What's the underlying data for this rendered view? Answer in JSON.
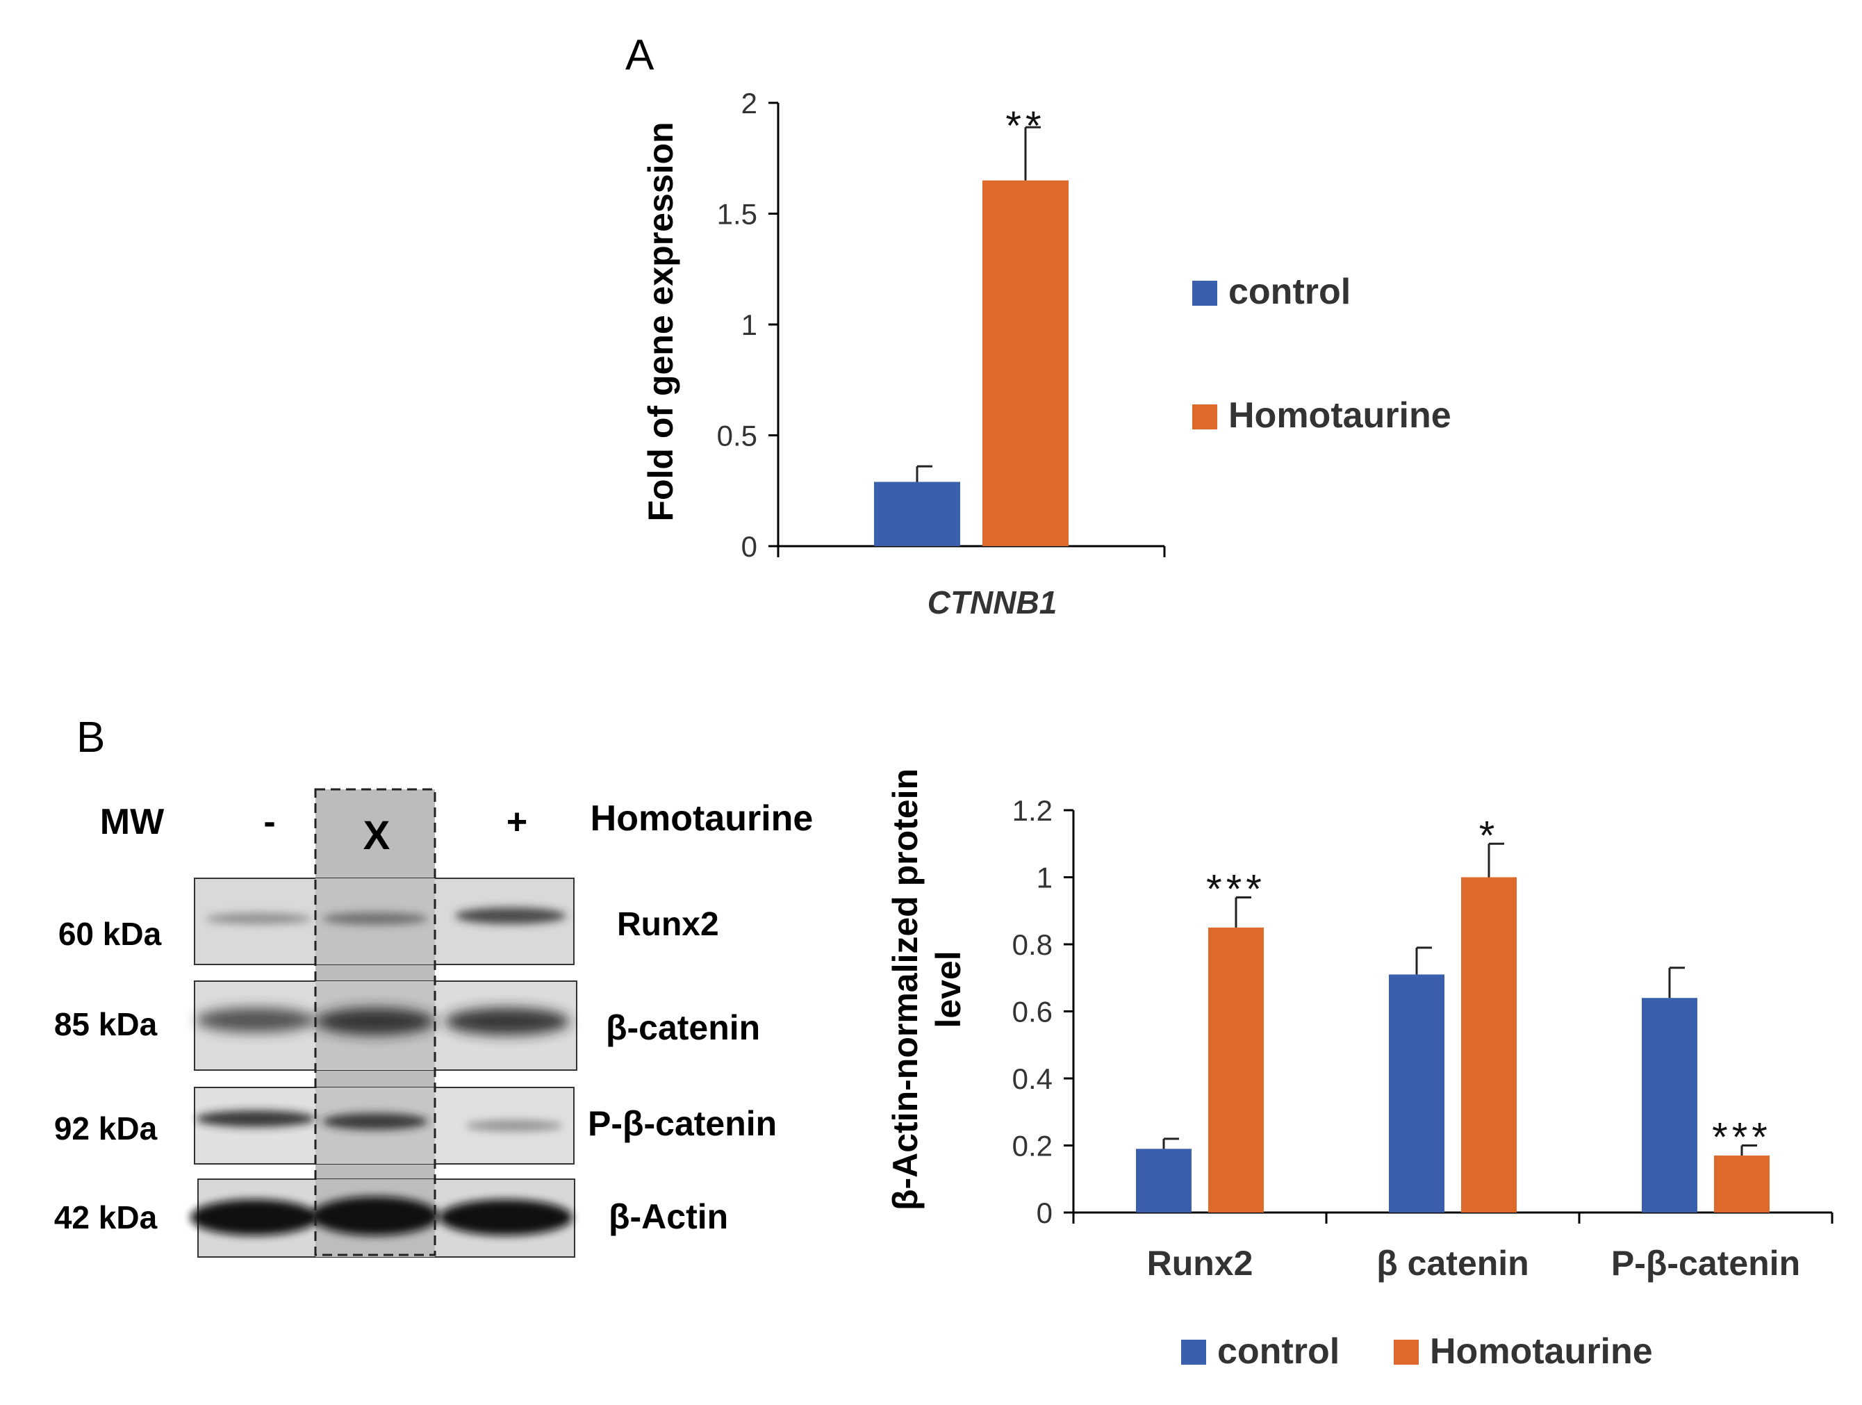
{
  "panels": {
    "a_label": "A",
    "b_label": "B"
  },
  "colors": {
    "control": "#3a5fad",
    "homotaurine": "#dd6a2a",
    "axis": "#000000",
    "tick_text": "#333333"
  },
  "chart_data": [
    {
      "id": "panel-a",
      "type": "bar",
      "title": "",
      "categories": [
        "CTNNB1"
      ],
      "series": [
        {
          "name": "control",
          "values": [
            0.29
          ],
          "errors": [
            0.07
          ]
        },
        {
          "name": "Homotaurine",
          "values": [
            1.65
          ],
          "errors": [
            0.24
          ]
        }
      ],
      "significance": [
        [
          "",
          "**"
        ]
      ],
      "xlabel": "",
      "ylabel": "Fold of gene expression",
      "ylim": [
        0,
        2
      ],
      "yticks": [
        0,
        0.5,
        1,
        1.5,
        2
      ],
      "ytick_labels": [
        "0",
        "0.5",
        "1",
        "1.5",
        "2"
      ],
      "legend": [
        "control",
        "Homotaurine"
      ],
      "legend_position": "right"
    },
    {
      "id": "panel-b",
      "type": "bar",
      "title": "",
      "categories": [
        "Runx2",
        "β catenin",
        "P-β-catenin"
      ],
      "series": [
        {
          "name": "control",
          "values": [
            0.19,
            0.71,
            0.64
          ],
          "errors": [
            0.03,
            0.08,
            0.09
          ]
        },
        {
          "name": "Homotaurine",
          "values": [
            0.85,
            1.0,
            0.17
          ],
          "errors": [
            0.09,
            0.1,
            0.03
          ]
        }
      ],
      "significance": [
        [
          "",
          "***"
        ],
        [
          "",
          "*"
        ],
        [
          "",
          "***"
        ]
      ],
      "xlabel": "",
      "ylabel": "β-Actin-normalized protein level",
      "ylabel_lines": [
        "β-Actin-normalized protein",
        "level"
      ],
      "ylim": [
        0,
        1.2
      ],
      "yticks": [
        0,
        0.2,
        0.4,
        0.6,
        0.8,
        1,
        1.2
      ],
      "ytick_labels": [
        "0",
        "0.2",
        "0.4",
        "0.6",
        "0.8",
        "1",
        "1.2"
      ],
      "legend": [
        "control",
        "Homotaurine"
      ],
      "legend_position": "bottom"
    }
  ],
  "western_blot": {
    "header": {
      "mw": "MW",
      "minus": "-",
      "x": "X",
      "plus": "+",
      "treatment": "Homotaurine"
    },
    "rows": [
      {
        "weight": "60 kDa",
        "protein": "Runx2",
        "intensity": [
          0.35,
          0.45,
          0.75
        ]
      },
      {
        "weight": "85 kDa",
        "protein": "β-catenin",
        "intensity": [
          0.75,
          0.85,
          0.85
        ]
      },
      {
        "weight": "92 kDa",
        "protein": "P-β-catenin",
        "intensity": [
          0.8,
          0.8,
          0.3
        ]
      },
      {
        "weight": "42 kDa",
        "protein": "β-Actin",
        "intensity": [
          1.0,
          1.0,
          1.0
        ]
      }
    ]
  }
}
